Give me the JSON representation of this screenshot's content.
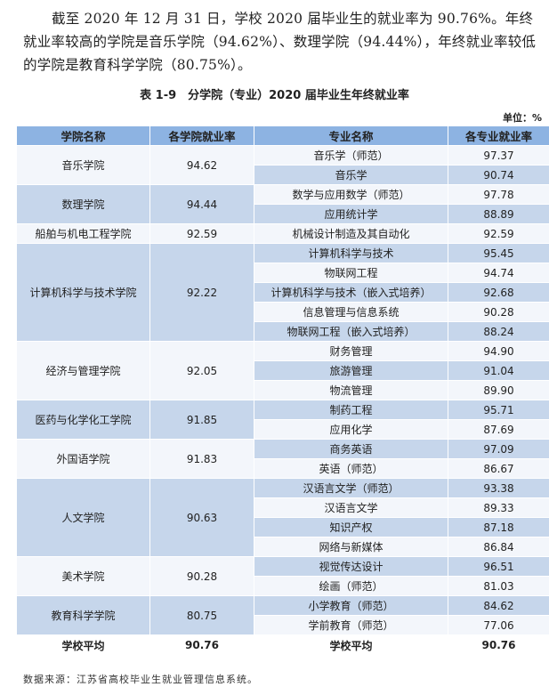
{
  "paragraph": "截至 2020 年 12 月 31 日，学校 2020 届毕业生的就业率为 90.76%。年终就业率较高的学院是音乐学院（94.62%）、数理学院（94.44%），年终就业率较低的学院是教育科学学院（80.75%）。",
  "caption": "表 1-9　分学院（专业）2020 届毕业生年终就业率",
  "unit": "单位：%",
  "headers": [
    "学院名称",
    "各学院就业率",
    "专业名称",
    "各专业就业率"
  ],
  "colleges": [
    {
      "name": "音乐学院",
      "rate": "94.62",
      "majors": [
        {
          "name": "音乐学（师范）",
          "rate": "97.37"
        },
        {
          "name": "音乐学",
          "rate": "90.74"
        }
      ]
    },
    {
      "name": "数理学院",
      "rate": "94.44",
      "majors": [
        {
          "name": "数学与应用数学（师范）",
          "rate": "97.78"
        },
        {
          "name": "应用统计学",
          "rate": "88.89"
        }
      ]
    },
    {
      "name": "船舶与机电工程学院",
      "rate": "92.59",
      "majors": [
        {
          "name": "机械设计制造及其自动化",
          "rate": "92.59"
        }
      ]
    },
    {
      "name": "计算机科学与技术学院",
      "rate": "92.22",
      "majors": [
        {
          "name": "计算机科学与技术",
          "rate": "95.45"
        },
        {
          "name": "物联网工程",
          "rate": "94.74"
        },
        {
          "name": "计算机科学与技术（嵌入式培养）",
          "rate": "92.68"
        },
        {
          "name": "信息管理与信息系统",
          "rate": "90.28"
        },
        {
          "name": "物联网工程（嵌入式培养）",
          "rate": "88.24"
        }
      ]
    },
    {
      "name": "经济与管理学院",
      "rate": "92.05",
      "majors": [
        {
          "name": "财务管理",
          "rate": "94.90"
        },
        {
          "name": "旅游管理",
          "rate": "91.04"
        },
        {
          "name": "物流管理",
          "rate": "89.90"
        }
      ]
    },
    {
      "name": "医药与化学化工学院",
      "rate": "91.85",
      "majors": [
        {
          "name": "制药工程",
          "rate": "95.71"
        },
        {
          "name": "应用化学",
          "rate": "87.69"
        }
      ]
    },
    {
      "name": "外国语学院",
      "rate": "91.83",
      "majors": [
        {
          "name": "商务英语",
          "rate": "97.09"
        },
        {
          "name": "英语（师范）",
          "rate": "86.67"
        }
      ]
    },
    {
      "name": "人文学院",
      "rate": "90.63",
      "majors": [
        {
          "name": "汉语言文学（师范）",
          "rate": "93.38"
        },
        {
          "name": "汉语言文学",
          "rate": "89.33"
        },
        {
          "name": "知识产权",
          "rate": "87.18"
        },
        {
          "name": "网络与新媒体",
          "rate": "86.84"
        }
      ]
    },
    {
      "name": "美术学院",
      "rate": "90.28",
      "majors": [
        {
          "name": "视觉传达设计",
          "rate": "96.51"
        },
        {
          "name": "绘画（师范）",
          "rate": "81.03"
        }
      ]
    },
    {
      "name": "教育科学学院",
      "rate": "80.75",
      "majors": [
        {
          "name": "小学教育（师范）",
          "rate": "84.62"
        },
        {
          "name": "学前教育（师范）",
          "rate": "77.06"
        }
      ]
    }
  ],
  "total": {
    "label": "学校平均",
    "rate": "90.76",
    "label2": "学校平均",
    "rate2": "90.76"
  },
  "source": "数据来源：江苏省高校毕业生就业管理信息系统。",
  "colors": {
    "header": "#8db3e2",
    "row_blue": "#c6d6eb",
    "row_white": "#f3f6fb"
  }
}
